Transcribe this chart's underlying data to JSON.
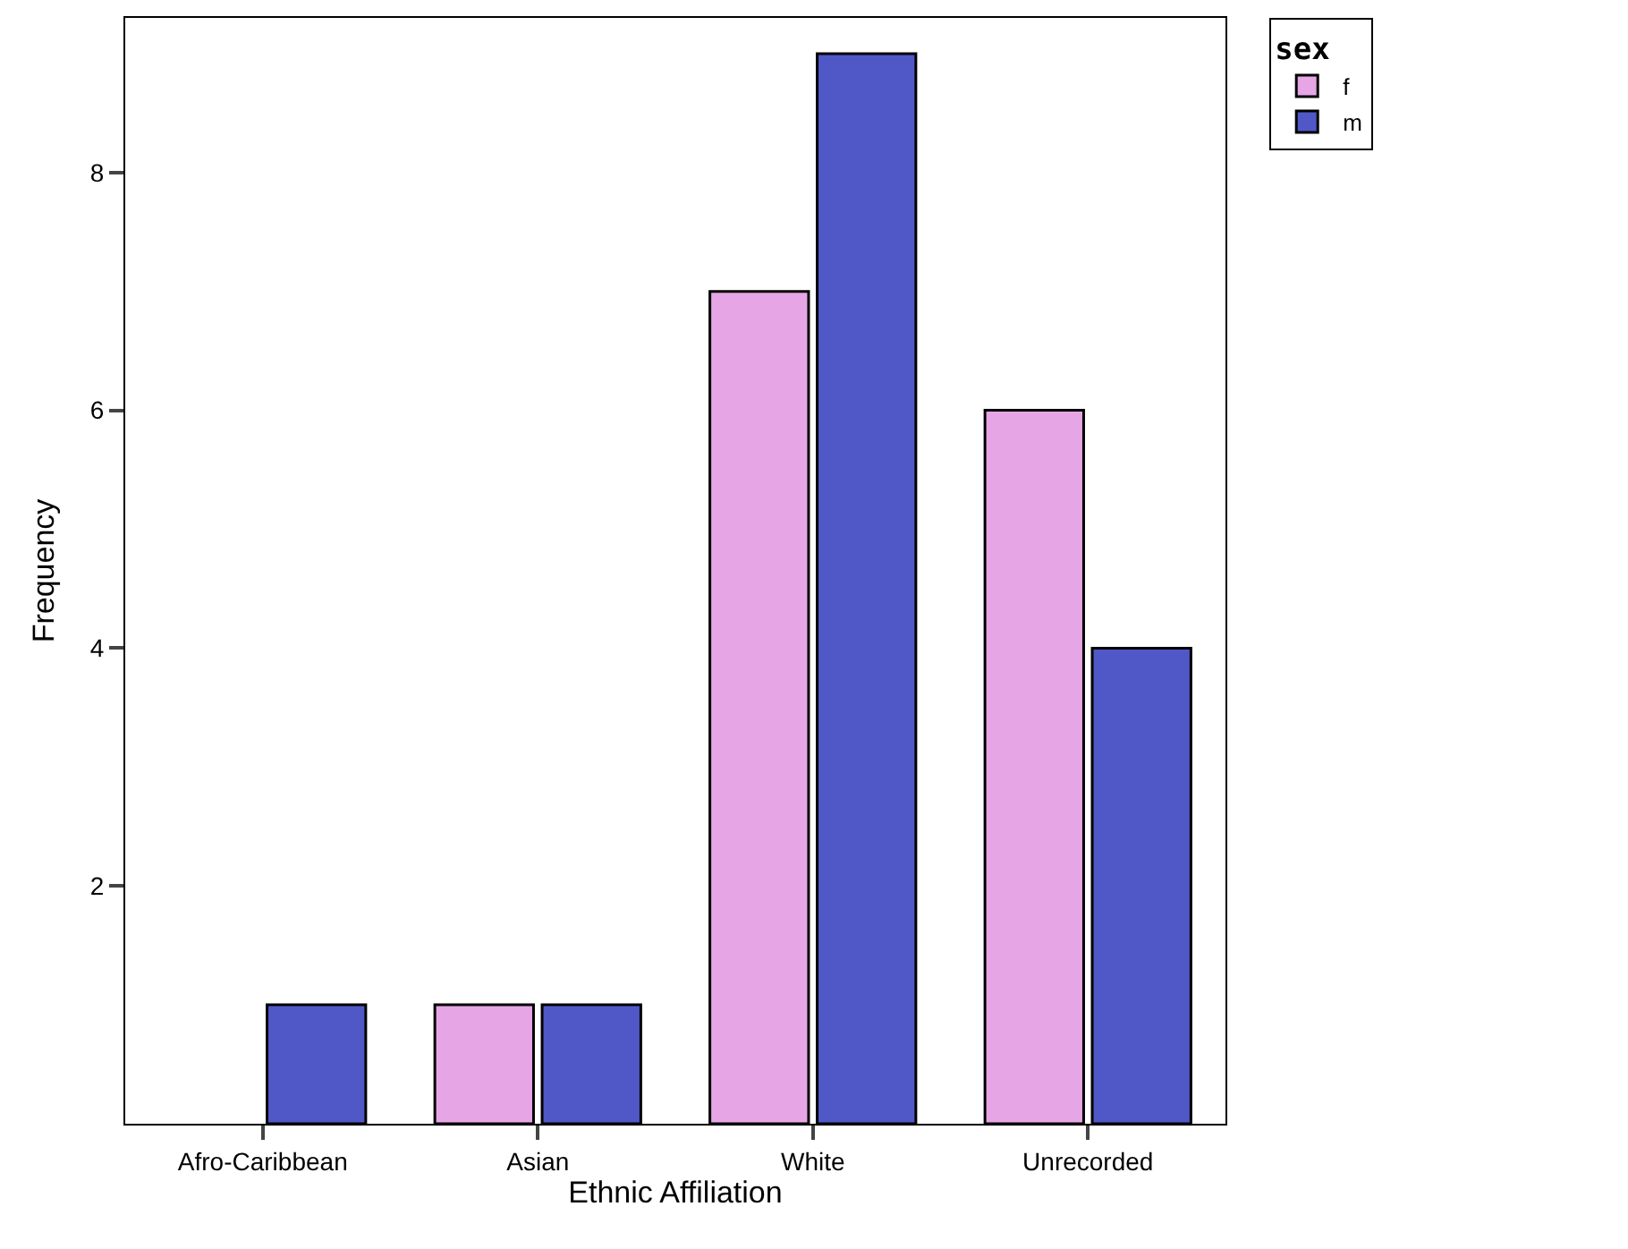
{
  "chart_data": {
    "type": "bar",
    "xlabel": "Ethnic Affiliation",
    "ylabel": "Frequency",
    "legend_title": "sex",
    "categories": [
      "Afro-Caribbean",
      "Asian",
      "White",
      "Unrecorded"
    ],
    "series": [
      {
        "name": "f",
        "color": "#e6a6e6",
        "values": [
          null,
          1,
          7,
          6
        ]
      },
      {
        "name": "m",
        "color": "#5058c8",
        "values": [
          1,
          1,
          9,
          4
        ]
      }
    ],
    "ylim": [
      0,
      9.3
    ],
    "yticks": [
      2,
      4,
      6,
      8
    ],
    "legend": "top right"
  }
}
